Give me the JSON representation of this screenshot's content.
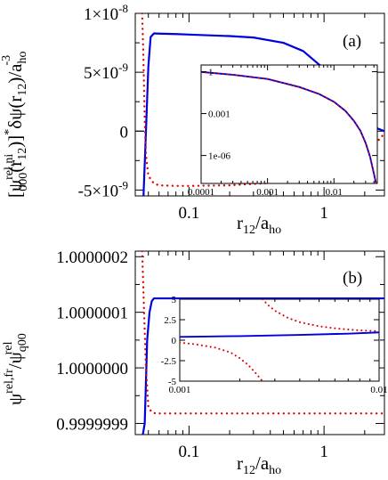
{
  "figure": {
    "panels": [
      "(a)",
      "(b)"
    ]
  },
  "chart_data": [
    {
      "type": "line",
      "panel_label": "(a)",
      "x_scale": "log",
      "xlim": [
        0.04,
        2.8
      ],
      "ylim": [
        -5.5e-09,
        1e-08
      ],
      "xticks": [
        {
          "value": 0.1,
          "label": "0.1"
        },
        {
          "value": 1,
          "label": "1"
        }
      ],
      "yticks": [
        {
          "value": 1e-08,
          "base": "1×10",
          "exp": "-8"
        },
        {
          "value": 5e-09,
          "base": "5×10",
          "exp": "-9"
        },
        {
          "value": 0,
          "base": "0",
          "exp": ""
        },
        {
          "value": -5e-09,
          "base": "-5×10",
          "exp": "-9"
        }
      ],
      "xlabel": {
        "main": "r",
        "sub": "12",
        "slash": "/a",
        "sub2": "ho"
      },
      "ylabel": {
        "bracket_open": "[ψ",
        "sup1": "rel,ni",
        "sub1": "000",
        "mid": "(r",
        "sub2": "12",
        "mid2": ")]",
        "sup2": "*",
        "mid3": "δψ(r",
        "sub3": "12",
        "mid4": ")/a",
        "sub4": "ho",
        "sup3": "-3"
      },
      "series": [
        {
          "style": "solid",
          "color": "#0000dd",
          "x": [
            0.046,
            0.048,
            0.05,
            0.052,
            0.055,
            0.06,
            0.08,
            0.1,
            0.2,
            0.3,
            0.5,
            0.7,
            1.0,
            1.3,
            1.6,
            2.0,
            2.4,
            2.8
          ],
          "y": [
            -5.6e-09,
            0,
            5.5e-09,
            8e-09,
            8.3e-09,
            8.28e-09,
            8.24e-09,
            8.2e-09,
            8.07e-09,
            7.95e-09,
            7.5e-09,
            6.8e-09,
            5.3e-09,
            3.8e-09,
            2.4e-09,
            1.1e-09,
            3e-10,
            0
          ]
        },
        {
          "style": "dotted",
          "color": "#dd0000",
          "x": [
            0.045,
            0.046,
            0.047,
            0.048,
            0.05,
            0.055,
            0.06,
            0.08,
            0.1,
            0.2,
            0.4,
            0.7,
            1.0,
            1.3,
            1.7,
            2.0,
            2.3,
            2.8
          ],
          "y": [
            1e-08,
            6e-09,
            1e-09,
            -2e-09,
            -3.8e-09,
            -4.45e-09,
            -4.6e-09,
            -4.65e-09,
            -4.65e-09,
            -4.6e-09,
            -4.4e-09,
            -3.85e-09,
            -3e-09,
            -2.3e-09,
            -1.6e-09,
            -1.55e-09,
            -1.3e-09,
            -2e-10
          ]
        }
      ],
      "inset": {
        "x_scale": "log",
        "y_scale": "log",
        "xlim": [
          0.0001,
          0.045
        ],
        "ylim": [
          1e-08,
          3
        ],
        "xticks": [
          {
            "value": 0.0001,
            "label": "0.0001"
          },
          {
            "value": 0.001,
            "label": "0.001"
          },
          {
            "value": 0.01,
            "label": "0.01"
          }
        ],
        "yticks": [
          {
            "value": 1,
            "label": "1"
          },
          {
            "value": 0.001,
            "label": "0.001"
          },
          {
            "value": 1e-06,
            "label": "1e-06"
          }
        ],
        "series": [
          {
            "style": "solid",
            "color": "#0000dd",
            "x": [
              0.0001,
              0.0003,
              0.001,
              0.003,
              0.006,
              0.01,
              0.015,
              0.02,
              0.025,
              0.03,
              0.035,
              0.04,
              0.043
            ],
            "y": [
              0.95,
              0.6,
              0.3,
              0.08,
              0.025,
              0.007,
              0.0015,
              0.0003,
              6e-05,
              8e-06,
              8e-07,
              5e-08,
              1e-08
            ]
          },
          {
            "style": "dotted",
            "color": "#dd0000",
            "x": [
              0.0001,
              0.0003,
              0.001,
              0.003,
              0.006,
              0.01,
              0.015,
              0.02,
              0.025,
              0.03,
              0.035,
              0.04,
              0.043
            ],
            "y": [
              0.95,
              0.6,
              0.3,
              0.08,
              0.025,
              0.007,
              0.0015,
              0.0003,
              6e-05,
              8e-06,
              8e-07,
              5e-08,
              1e-08
            ]
          }
        ]
      }
    },
    {
      "type": "line",
      "panel_label": "(b)",
      "x_scale": "log",
      "xlim": [
        0.04,
        2.8
      ],
      "ylim": [
        0.99999988,
        1.00000021
      ],
      "xticks": [
        {
          "value": 0.1,
          "label": "0.1"
        },
        {
          "value": 1,
          "label": "1"
        }
      ],
      "yticks": [
        {
          "value": 1.0000002,
          "label": "1.0000002"
        },
        {
          "value": 1.0000001,
          "label": "1.0000001"
        },
        {
          "value": 1.0,
          "label": "1.0000000"
        },
        {
          "value": 0.9999999,
          "label": "0.9999999"
        }
      ],
      "xlabel": {
        "main": "r",
        "sub": "12",
        "slash": "/a",
        "sub2": "ho"
      },
      "ylabel": {
        "main": "ψ",
        "sup1": "rel,fr",
        "slash": "/ψ",
        "sub2": "q00",
        "sup2": "rel"
      },
      "series": [
        {
          "style": "solid",
          "color": "#0000dd",
          "x": [
            0.0455,
            0.047,
            0.049,
            0.051,
            0.053,
            0.055,
            0.06,
            0.1,
            0.5,
            1.0,
            2.0,
            2.8
          ],
          "y": [
            0.99999988,
            0.9999999,
            1.00000005,
            1.0000001,
            1.00000012,
            1.000000125,
            1.000000125,
            1.000000125,
            1.000000125,
            1.000000125,
            1.000000125,
            1.000000125
          ]
        },
        {
          "style": "dotted",
          "color": "#dd0000",
          "x": [
            0.045,
            0.0465,
            0.048,
            0.05,
            0.053,
            0.057,
            0.06,
            0.1,
            0.5,
            1.0,
            2.0,
            2.8
          ],
          "y": [
            1.00000021,
            1.0000001,
            1.0,
            0.99999993,
            0.99999992,
            0.999999918,
            0.999999918,
            0.999999918,
            0.999999918,
            0.999999918,
            0.999999918,
            0.999999918
          ]
        }
      ],
      "inset": {
        "x_scale": "log",
        "y_scale": "linear",
        "xlim": [
          0.001,
          0.01
        ],
        "ylim": [
          -5,
          5
        ],
        "xticks": [
          {
            "value": 0.001,
            "label": "0.001"
          },
          {
            "value": 0.01,
            "label": "0.01"
          }
        ],
        "yticks": [
          {
            "value": 5,
            "label": "5"
          },
          {
            "value": 2.5,
            "label": "2.5"
          },
          {
            "value": 0,
            "label": "0"
          },
          {
            "value": -2.5,
            "label": "-2.5"
          },
          {
            "value": -5,
            "label": "-5"
          }
        ],
        "series": [
          {
            "style": "solid",
            "color": "#0000dd",
            "x": [
              0.001,
              0.002,
              0.004,
              0.007,
              0.01
            ],
            "y": [
              0.4,
              0.5,
              0.65,
              0.8,
              0.95
            ]
          },
          {
            "style": "dotted",
            "color": "#dd0000",
            "x": [
              0.0026,
              0.0028,
              0.003,
              0.0035,
              0.004,
              0.005,
              0.006,
              0.007,
              0.008,
              0.01
            ],
            "y": [
              5,
              4.2,
              3.6,
              2.7,
              2.2,
              1.7,
              1.45,
              1.3,
              1.2,
              1.1
            ]
          },
          {
            "style": "dotted",
            "color": "#dd0000",
            "x": [
              0.001,
              0.0012,
              0.0015,
              0.0018,
              0.002,
              0.0022,
              0.0024,
              0.0026
            ],
            "y": [
              -0.3,
              -0.5,
              -0.9,
              -1.5,
              -2.2,
              -3.0,
              -4.0,
              -5.0
            ]
          }
        ]
      }
    }
  ]
}
